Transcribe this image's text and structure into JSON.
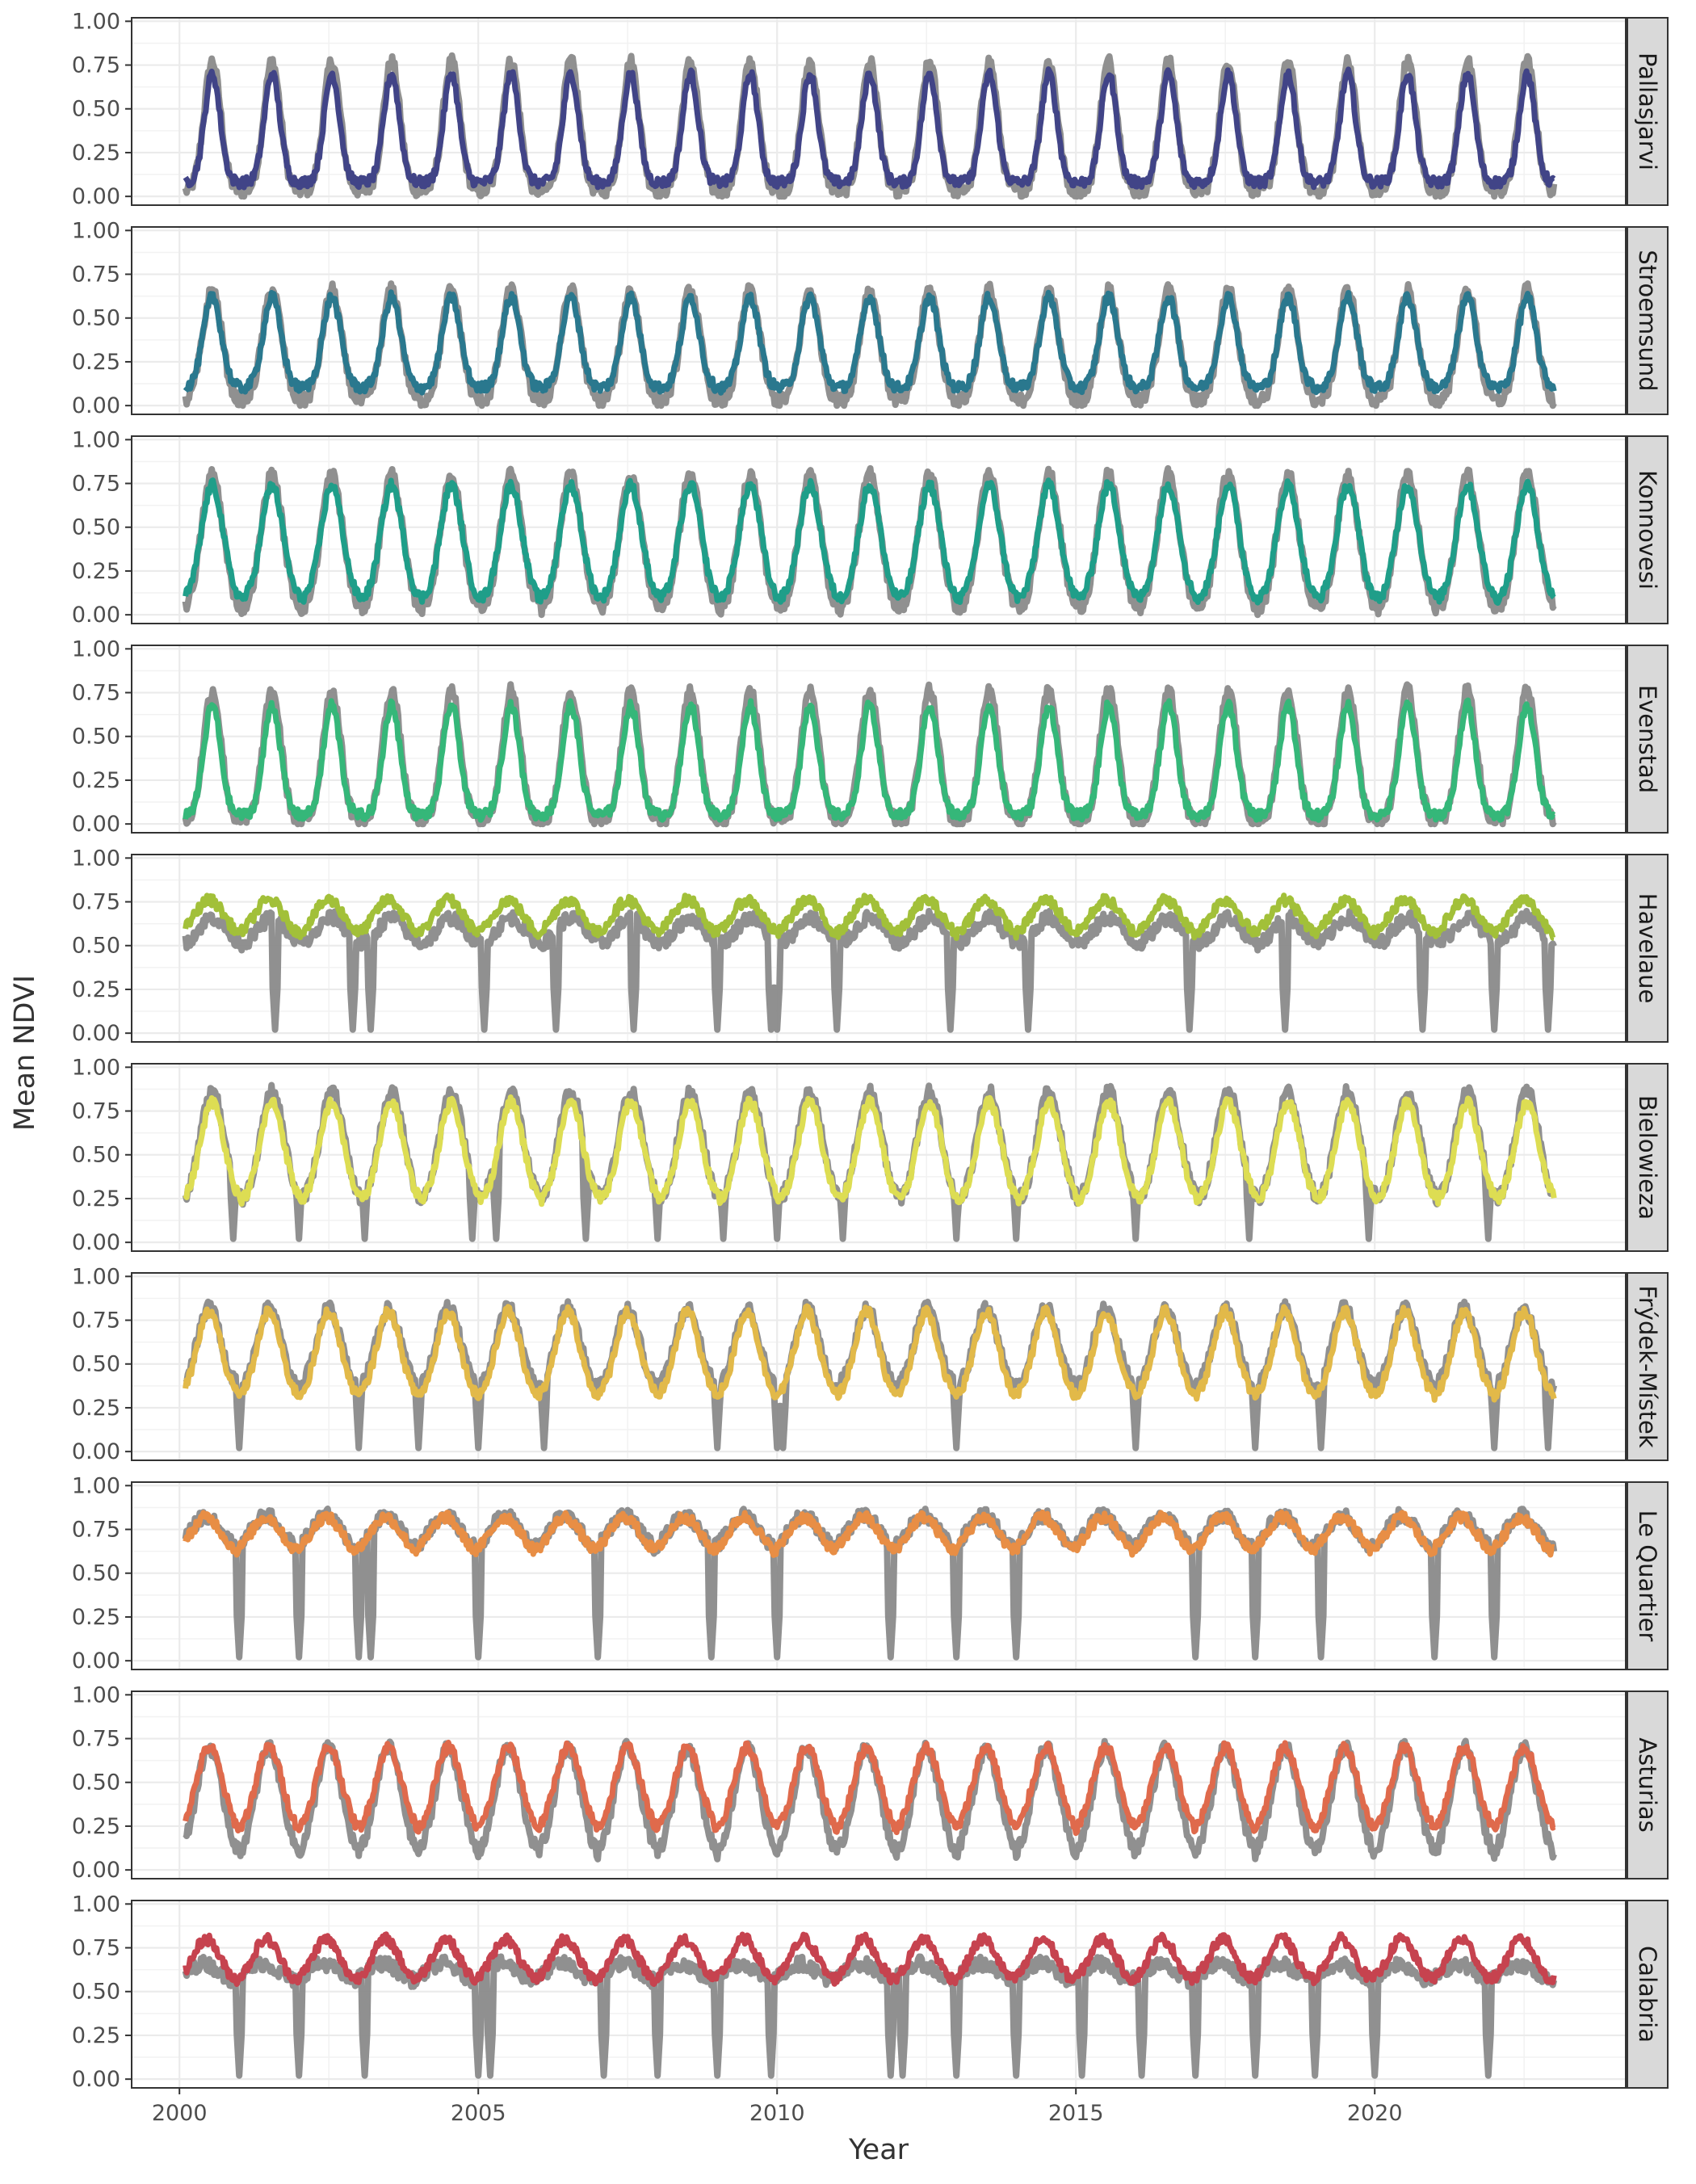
{
  "chart_data": {
    "type": "line",
    "facet_layout": "vertical small multiples, strip labels on right",
    "xlabel": "Year",
    "ylabel": "Mean NDVI",
    "x_ticks": [
      2000,
      2005,
      2010,
      2015,
      2020
    ],
    "y_ticks": [
      "0.00",
      "0.25",
      "0.50",
      "0.75",
      "1.00"
    ],
    "xlim": [
      1999.2,
      2024.2
    ],
    "ylim": [
      -0.05,
      1.02
    ],
    "grid": true,
    "x_range_observed": [
      2000.1,
      2023.0
    ],
    "sample_step_years": 0.08,
    "reference_series_color": "#8a8a8a",
    "note_units": "Mean NDVI (unitless), seasonal cycle one peak per year",
    "panels": [
      {
        "name": "Pallasjarvi",
        "color": "#414487",
        "gray_profile": {
          "min": 0.03,
          "max": 0.77,
          "peak_doy": 0.55,
          "width": 0.14,
          "dips": []
        },
        "color_profile": {
          "min": 0.08,
          "max": 0.7,
          "peak_doy": 0.55,
          "width": 0.13,
          "dips": []
        }
      },
      {
        "name": "Stroemsund",
        "color": "#2A788E",
        "gray_profile": {
          "min": 0.02,
          "max": 0.66,
          "peak_doy": 0.55,
          "width": 0.16,
          "dips": []
        },
        "color_profile": {
          "min": 0.1,
          "max": 0.62,
          "peak_doy": 0.55,
          "width": 0.15,
          "dips": []
        }
      },
      {
        "name": "Konnovesi",
        "color": "#1F9E89",
        "gray_profile": {
          "min": 0.02,
          "max": 0.8,
          "peak_doy": 0.55,
          "width": 0.18,
          "dips": []
        },
        "color_profile": {
          "min": 0.08,
          "max": 0.74,
          "peak_doy": 0.55,
          "width": 0.18,
          "dips": []
        }
      },
      {
        "name": "Evenstad",
        "color": "#35B779",
        "gray_profile": {
          "min": 0.01,
          "max": 0.76,
          "peak_doy": 0.55,
          "width": 0.15,
          "dips": []
        },
        "color_profile": {
          "min": 0.05,
          "max": 0.68,
          "peak_doy": 0.55,
          "width": 0.14,
          "dips": []
        }
      },
      {
        "name": "Havelaue",
        "color": "#A2C039",
        "gray_profile": {
          "min": 0.5,
          "max": 0.66,
          "peak_doy": 0.55,
          "width": 0.22,
          "dips": [
            2001.6,
            2002.9,
            2003.2,
            2005.1,
            2006.3,
            2007.6,
            2009.0,
            2009.9,
            2010.0,
            2011.0,
            2012.9,
            2014.2,
            2016.9,
            2018.5,
            2020.8,
            2022.0,
            2022.9
          ]
        },
        "color_profile": {
          "min": 0.54,
          "max": 0.76,
          "peak_doy": 0.5,
          "width": 0.25,
          "dips": []
        }
      },
      {
        "name": "Bielowieza",
        "color": "#DDDD53",
        "gray_profile": {
          "min": 0.22,
          "max": 0.86,
          "peak_doy": 0.55,
          "width": 0.2,
          "dips": [
            2000.9,
            2002.0,
            2003.1,
            2004.9,
            2005.3,
            2006.8,
            2008.0,
            2009.1,
            2010.0,
            2011.1,
            2013.0,
            2014.0,
            2016.0,
            2017.9,
            2019.9,
            2021.9
          ]
        },
        "color_profile": {
          "min": 0.22,
          "max": 0.8,
          "peak_doy": 0.55,
          "width": 0.2,
          "dips": []
        }
      },
      {
        "name": "Frýdek-Místek",
        "color": "#E2B949",
        "gray_profile": {
          "min": 0.35,
          "max": 0.82,
          "peak_doy": 0.5,
          "width": 0.2,
          "dips": [
            2001.0,
            2003.0,
            2004.0,
            2005.0,
            2006.1,
            2009.0,
            2010.0,
            2010.1,
            2013.0,
            2016.0,
            2018.0,
            2019.1,
            2022.0,
            2022.9
          ]
        },
        "color_profile": {
          "min": 0.3,
          "max": 0.8,
          "peak_doy": 0.5,
          "width": 0.2,
          "dips": []
        }
      },
      {
        "name": "Le Quartier",
        "color": "#E88E45",
        "gray_profile": {
          "min": 0.62,
          "max": 0.83,
          "peak_doy": 0.45,
          "width": 0.25,
          "dips": [
            2001.0,
            2002.0,
            2003.0,
            2003.2,
            2005.0,
            2007.0,
            2008.9,
            2010.0,
            2011.9,
            2013.0,
            2014.0,
            2017.0,
            2018.0,
            2019.1,
            2021.0,
            2022.0
          ]
        },
        "color_profile": {
          "min": 0.6,
          "max": 0.82,
          "peak_doy": 0.45,
          "width": 0.25,
          "dips": []
        }
      },
      {
        "name": "Asturias",
        "color": "#DF6A4C",
        "gray_profile": {
          "min": 0.05,
          "max": 0.7,
          "peak_doy": 0.5,
          "width": 0.22,
          "dips": []
        },
        "color_profile": {
          "min": 0.2,
          "max": 0.7,
          "peak_doy": 0.5,
          "width": 0.22,
          "dips": []
        }
      },
      {
        "name": "Calabria",
        "color": "#C6434F",
        "gray_profile": {
          "min": 0.55,
          "max": 0.66,
          "peak_doy": 0.4,
          "width": 0.25,
          "dips": [
            2001.0,
            2002.0,
            2003.1,
            2005.0,
            2005.2,
            2007.1,
            2008.0,
            2009.0,
            2009.9,
            2011.9,
            2012.1,
            2013.0,
            2014.0,
            2015.1,
            2016.1,
            2017.0,
            2018.0,
            2019.0,
            2020.0,
            2021.9
          ]
        },
        "color_profile": {
          "min": 0.55,
          "max": 0.8,
          "peak_doy": 0.45,
          "width": 0.22,
          "dips": []
        }
      }
    ]
  }
}
